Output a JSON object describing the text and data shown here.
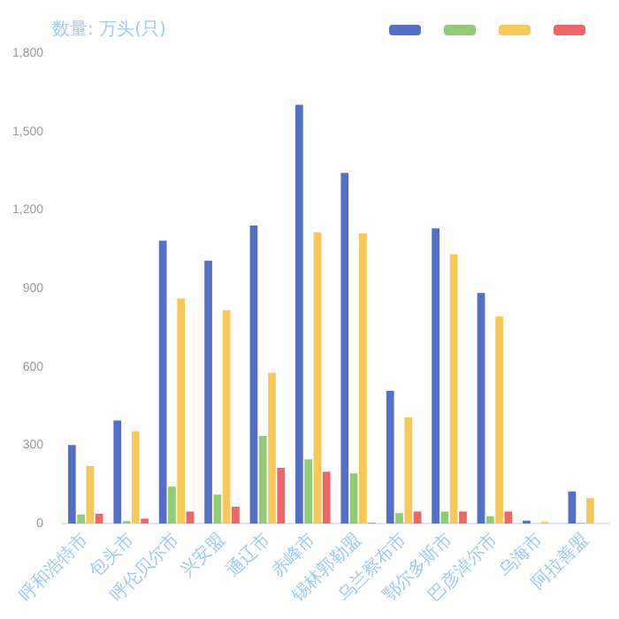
{
  "chart_data": {
    "type": "bar",
    "ylabel": "数量: 万头(只)",
    "categories": [
      "呼和浩特市",
      "包头市",
      "呼伦贝尔市",
      "兴安盟",
      "通辽市",
      "赤峰市",
      "锡林郭勒盟",
      "乌兰察布市",
      "鄂尔多斯市",
      "巴彦淖尔市",
      "乌海市",
      "阿拉善盟"
    ],
    "series": [
      {
        "color": "#5470c6",
        "values": [
          301,
          395,
          1082,
          1006,
          1141,
          1602,
          1342,
          508,
          1130,
          883,
          12,
          124
        ]
      },
      {
        "color": "#91cc75",
        "values": [
          35,
          10,
          142,
          112,
          336,
          246,
          193,
          41,
          47,
          29,
          null,
          4
        ]
      },
      {
        "color": "#fac858",
        "values": [
          221,
          354,
          862,
          817,
          578,
          1114,
          1110,
          407,
          1031,
          793,
          8,
          98
        ]
      },
      {
        "color": "#ee6666",
        "values": [
          38,
          20,
          47,
          65,
          214,
          199,
          4,
          47,
          47,
          47,
          null,
          null
        ]
      }
    ],
    "ylim": [
      0,
      1800
    ],
    "yticks": [
      0,
      300,
      600,
      900,
      {
        "value": 1200,
        "label": "1,200"
      },
      {
        "value": 1500,
        "label": "1,500"
      },
      {
        "value": 1800,
        "label": "1,800"
      }
    ],
    "grid": false
  }
}
